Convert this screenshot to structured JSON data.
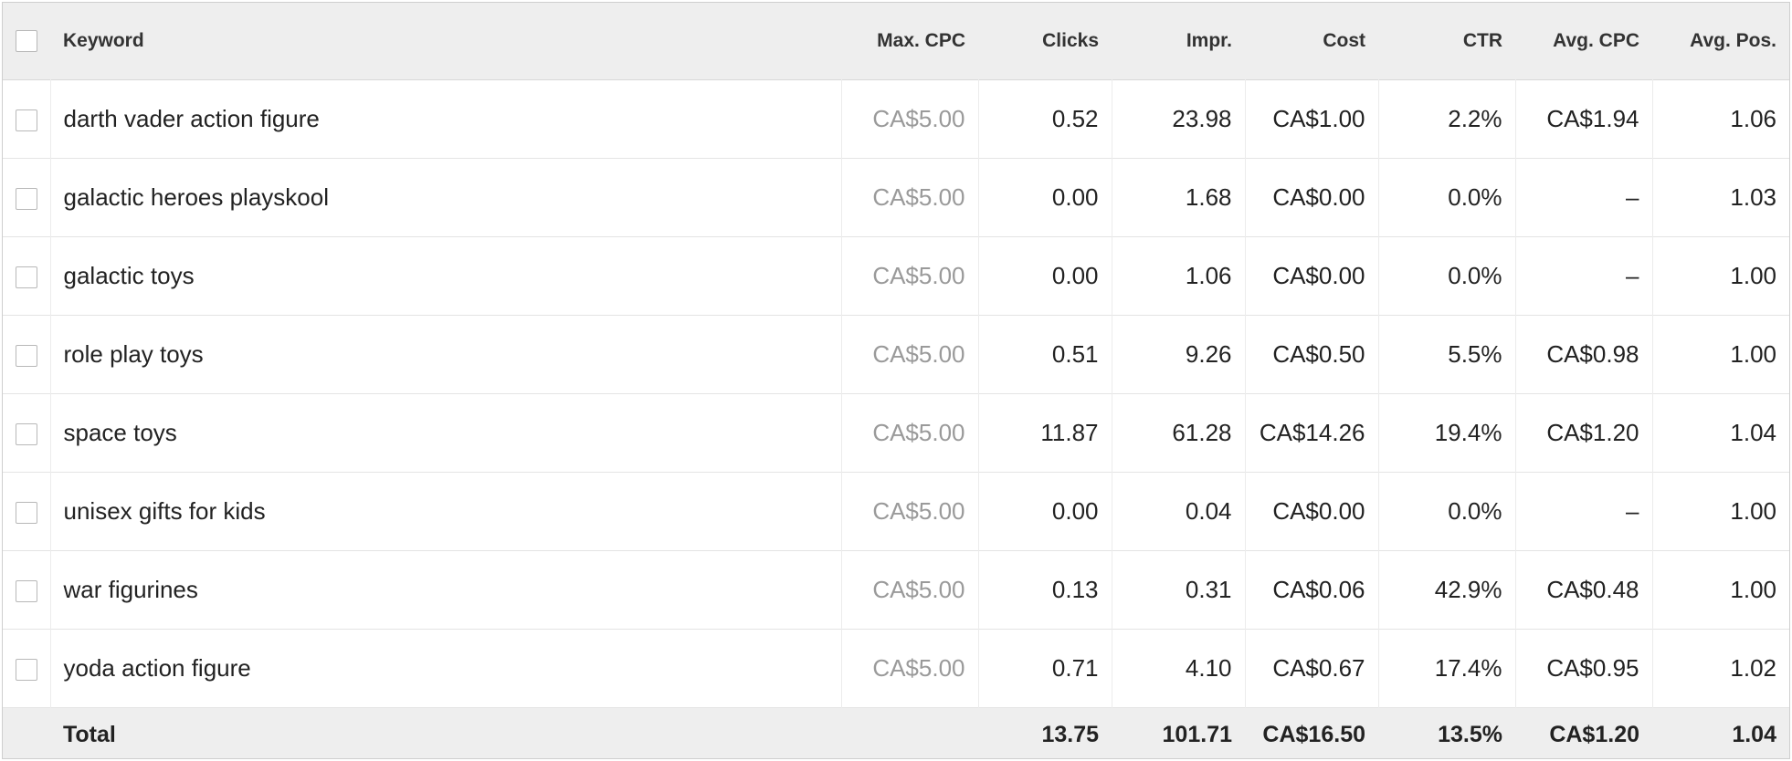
{
  "table": {
    "headers": {
      "keyword": "Keyword",
      "max_cpc": "Max. CPC",
      "clicks": "Clicks",
      "impr": "Impr.",
      "cost": "Cost",
      "ctr": "CTR",
      "avg_cpc": "Avg. CPC",
      "avg_pos": "Avg. Pos."
    },
    "rows": [
      {
        "keyword": "darth vader action figure",
        "max_cpc": "CA$5.00",
        "clicks": "0.52",
        "impr": "23.98",
        "cost": "CA$1.00",
        "ctr": "2.2%",
        "avg_cpc": "CA$1.94",
        "avg_pos": "1.06"
      },
      {
        "keyword": "galactic heroes playskool",
        "max_cpc": "CA$5.00",
        "clicks": "0.00",
        "impr": "1.68",
        "cost": "CA$0.00",
        "ctr": "0.0%",
        "avg_cpc": "–",
        "avg_pos": "1.03"
      },
      {
        "keyword": "galactic toys",
        "max_cpc": "CA$5.00",
        "clicks": "0.00",
        "impr": "1.06",
        "cost": "CA$0.00",
        "ctr": "0.0%",
        "avg_cpc": "–",
        "avg_pos": "1.00"
      },
      {
        "keyword": "role play toys",
        "max_cpc": "CA$5.00",
        "clicks": "0.51",
        "impr": "9.26",
        "cost": "CA$0.50",
        "ctr": "5.5%",
        "avg_cpc": "CA$0.98",
        "avg_pos": "1.00"
      },
      {
        "keyword": "space toys",
        "max_cpc": "CA$5.00",
        "clicks": "11.87",
        "impr": "61.28",
        "cost": "CA$14.26",
        "ctr": "19.4%",
        "avg_cpc": "CA$1.20",
        "avg_pos": "1.04"
      },
      {
        "keyword": "unisex gifts for kids",
        "max_cpc": "CA$5.00",
        "clicks": "0.00",
        "impr": "0.04",
        "cost": "CA$0.00",
        "ctr": "0.0%",
        "avg_cpc": "–",
        "avg_pos": "1.00"
      },
      {
        "keyword": "war figurines",
        "max_cpc": "CA$5.00",
        "clicks": "0.13",
        "impr": "0.31",
        "cost": "CA$0.06",
        "ctr": "42.9%",
        "avg_cpc": "CA$0.48",
        "avg_pos": "1.00"
      },
      {
        "keyword": "yoda action figure",
        "max_cpc": "CA$5.00",
        "clicks": "0.71",
        "impr": "4.10",
        "cost": "CA$0.67",
        "ctr": "17.4%",
        "avg_cpc": "CA$0.95",
        "avg_pos": "1.02"
      }
    ],
    "total": {
      "label": "Total",
      "max_cpc": "",
      "clicks": "13.75",
      "impr": "101.71",
      "cost": "CA$16.50",
      "ctr": "13.5%",
      "avg_cpc": "CA$1.20",
      "avg_pos": "1.04"
    }
  },
  "colors": {
    "header_bg": "#eeeeee",
    "muted_text": "#9a9a9a",
    "border": "#e4e4e4"
  }
}
